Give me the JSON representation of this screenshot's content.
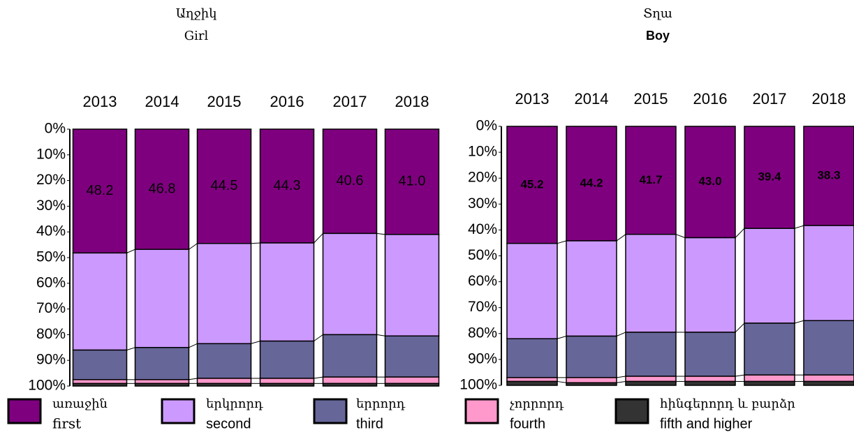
{
  "chart_data": [
    {
      "type": "bar",
      "stacked": true,
      "inverted_y": true,
      "title_hy": "Աղջիկ",
      "title": "Girl",
      "categories": [
        "2013",
        "2014",
        "2015",
        "2016",
        "2017",
        "2018"
      ],
      "ylim": [
        0,
        100
      ],
      "yticks": [
        {
          "value": 0,
          "label": "0%"
        },
        {
          "value": 10,
          "label": "10%"
        },
        {
          "value": 20,
          "label": "20%"
        },
        {
          "value": 30,
          "label": "30%"
        },
        {
          "value": 40,
          "label": "40%"
        },
        {
          "value": 50,
          "label": "50%"
        },
        {
          "value": 60,
          "label": "60%"
        },
        {
          "value": 70,
          "label": "70%"
        },
        {
          "value": 80,
          "label": "80%"
        },
        {
          "value": 90,
          "label": "90%"
        },
        {
          "value": 100,
          "label": "100%"
        }
      ],
      "series": [
        {
          "name_hy": "առաջին",
          "name": "first",
          "color": "#7f007f",
          "values": [
            48.2,
            46.8,
            44.5,
            44.3,
            40.6,
            41.0
          ],
          "value_labels": [
            "48.2",
            "46.8",
            "44.5",
            "44.3",
            "40.6",
            "41.0"
          ]
        },
        {
          "name_hy": "երկրորդ",
          "name": "second",
          "color": "#cc99ff",
          "values": [
            37.8,
            38.2,
            39.0,
            38.2,
            39.4,
            39.5
          ]
        },
        {
          "name_hy": "երրորդ",
          "name": "third",
          "color": "#666699",
          "values": [
            11.5,
            12.5,
            13.5,
            14.5,
            16.5,
            16.0
          ]
        },
        {
          "name_hy": "չորրորդ",
          "name": "fourth",
          "color": "#ff99cc",
          "values": [
            1.5,
            1.5,
            2.0,
            2.0,
            2.5,
            2.5
          ]
        },
        {
          "name_hy": "հինգերորդ և բարձր",
          "name": "fifth and higher",
          "color": "#333333",
          "values": [
            1.0,
            1.0,
            1.0,
            1.0,
            1.0,
            1.0
          ]
        }
      ]
    },
    {
      "type": "bar",
      "stacked": true,
      "inverted_y": true,
      "title_hy": "Տղա",
      "title": "Boy",
      "categories": [
        "2013",
        "2014",
        "2015",
        "2016",
        "2017",
        "2018"
      ],
      "ylim": [
        0,
        100
      ],
      "yticks": [
        {
          "value": 0,
          "label": "0%"
        },
        {
          "value": 10,
          "label": "10%"
        },
        {
          "value": 20,
          "label": "20%"
        },
        {
          "value": 30,
          "label": "30%"
        },
        {
          "value": 40,
          "label": "40%"
        },
        {
          "value": 50,
          "label": "50%"
        },
        {
          "value": 60,
          "label": "60%"
        },
        {
          "value": 70,
          "label": "70%"
        },
        {
          "value": 80,
          "label": "80%"
        },
        {
          "value": 90,
          "label": "90%"
        },
        {
          "value": 100,
          "label": "100%"
        }
      ],
      "series": [
        {
          "color": "#7f007f",
          "values": [
            45.2,
            44.2,
            41.7,
            43.0,
            39.4,
            38.3
          ],
          "value_labels": [
            "45.2",
            "44.2",
            "41.7",
            "43.0",
            "39.4",
            "38.3"
          ]
        },
        {
          "color": "#cc99ff",
          "values": [
            36.8,
            36.8,
            37.8,
            36.5,
            36.6,
            36.7
          ]
        },
        {
          "color": "#666699",
          "values": [
            15.0,
            16.0,
            17.0,
            17.0,
            20.0,
            21.0
          ]
        },
        {
          "color": "#ff99cc",
          "values": [
            1.5,
            2.0,
            2.0,
            2.0,
            2.5,
            2.5
          ]
        },
        {
          "color": "#333333",
          "values": [
            1.5,
            1.0,
            1.5,
            1.5,
            1.5,
            1.5
          ]
        }
      ]
    }
  ]
}
